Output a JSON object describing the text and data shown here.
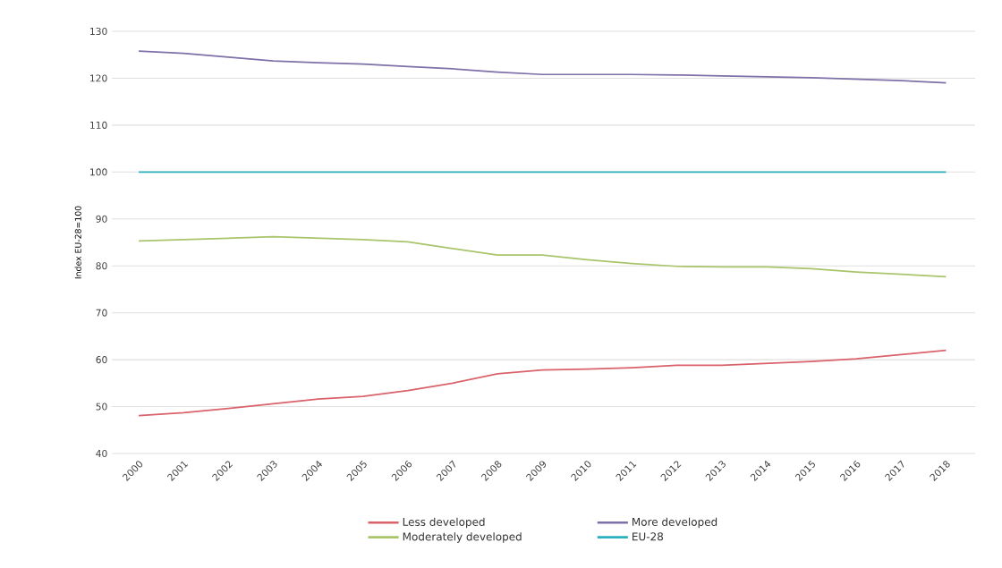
{
  "chart_data": {
    "type": "line",
    "ylabel": "Index EU-28=100",
    "categories": [
      "2000",
      "2001",
      "2002",
      "2003",
      "2004",
      "2005",
      "2006",
      "2007",
      "2008",
      "2009",
      "2010",
      "2011",
      "2012",
      "2013",
      "2014",
      "2015",
      "2016",
      "2017",
      "2018"
    ],
    "series": [
      {
        "name": "Less developed",
        "color": "#d9626b",
        "values": [
          48.1,
          48.7,
          49.6,
          50.6,
          51.6,
          52.2,
          53.4,
          55.0,
          57.0,
          57.8,
          58.0,
          58.3,
          58.8,
          58.8,
          59.2,
          59.6,
          60.2,
          61.1,
          62.0
        ]
      },
      {
        "name": "More developed",
        "color": "#7e70a8",
        "values": [
          125.8,
          125.3,
          124.5,
          123.7,
          123.3,
          123.0,
          122.5,
          122.0,
          121.3,
          120.8,
          120.8,
          120.8,
          120.7,
          120.5,
          120.3,
          120.1,
          119.8,
          119.5,
          119.0
        ]
      },
      {
        "name": "Moderately developed",
        "color": "#a9c46a",
        "values": [
          85.3,
          85.6,
          85.9,
          86.2,
          85.9,
          85.6,
          85.1,
          83.7,
          82.3,
          82.3,
          81.3,
          80.5,
          79.9,
          79.8,
          79.8,
          79.4,
          78.7,
          78.2,
          77.7
        ]
      },
      {
        "name": "EU-28",
        "color": "#2bb0c0",
        "values": [
          100,
          100,
          100,
          100,
          100,
          100,
          100,
          100,
          100,
          100,
          100,
          100,
          100,
          100,
          100,
          100,
          100,
          100,
          100
        ]
      }
    ],
    "ylim": [
      40,
      130
    ],
    "yticks": [
      40,
      50,
      60,
      70,
      80,
      90,
      100,
      110,
      120,
      130
    ],
    "grid": "y",
    "legend": "bottom",
    "marker": "none",
    "line_style": "solid"
  }
}
